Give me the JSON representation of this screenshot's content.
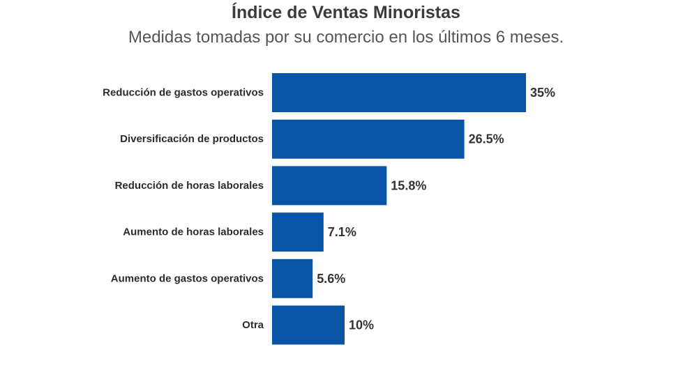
{
  "chart_data": {
    "type": "bar",
    "orientation": "horizontal",
    "title": "Índice de Ventas Minoristas",
    "subtitle": "Medidas tomadas por su comercio en los últimos 6 meses.",
    "categories": [
      "Reducción de gastos operativos",
      "Diversificación de productos",
      "Reducción de horas laborales",
      "Aumento de horas laborales",
      "Aumento de gastos operativos",
      "Otra"
    ],
    "values": [
      35,
      26.5,
      15.8,
      7.1,
      5.6,
      10
    ],
    "value_labels": [
      "35%",
      "26.5%",
      "15.8%",
      "7.1%",
      "5.6%",
      "10%"
    ],
    "unit": "%",
    "xlim": [
      0,
      35
    ],
    "xlabel": "",
    "ylabel": "",
    "grid": false,
    "bar_color": "#0a54a6"
  }
}
